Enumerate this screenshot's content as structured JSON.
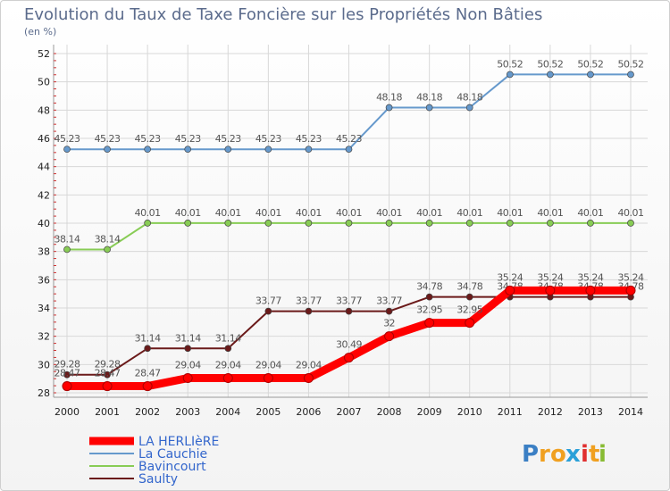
{
  "chart_data": {
    "type": "line",
    "title": "Evolution du Taux de Taxe Foncière sur les Propriétés Non Bâties",
    "subtitle": "(en %)",
    "xlabel": "",
    "ylabel": "",
    "x": [
      "2000",
      "2001",
      "2002",
      "2003",
      "2004",
      "2005",
      "2006",
      "2007",
      "2008",
      "2009",
      "2010",
      "2011",
      "2012",
      "2013",
      "2014"
    ],
    "ylim": [
      28,
      52
    ],
    "yticks": [
      28,
      30,
      32,
      34,
      36,
      38,
      40,
      42,
      44,
      46,
      48,
      50,
      52
    ],
    "grid": true,
    "legend_position": "bottom-left",
    "series": [
      {
        "name": "Saulty",
        "color": "#6b1a1a",
        "values": [
          29.28,
          29.28,
          31.14,
          31.14,
          31.14,
          33.77,
          33.77,
          33.77,
          33.77,
          34.78,
          34.78,
          34.78,
          34.78,
          34.78,
          34.78
        ],
        "labels": [
          "29.28",
          "29.28",
          "31.14",
          "31.14",
          "31.14",
          "33.77",
          "33.77",
          "33.77",
          "33.77",
          "34.78",
          "34.78",
          "34.78",
          "34.78",
          "34.78",
          "34.78"
        ]
      },
      {
        "name": "Bavincourt",
        "color": "#88cc55",
        "values": [
          38.14,
          38.14,
          40.01,
          40.01,
          40.01,
          40.01,
          40.01,
          40.01,
          40.01,
          40.01,
          40.01,
          40.01,
          40.01,
          40.01,
          40.01
        ],
        "labels": [
          "38.14",
          "38.14",
          "40.01",
          "40.01",
          "40.01",
          "40.01",
          "40.01",
          "40.01",
          "40.01",
          "40.01",
          "40.01",
          "40.01",
          "40.01",
          "40.01",
          "40.01"
        ]
      },
      {
        "name": "La Cauchie",
        "color": "#6699cc",
        "values": [
          45.23,
          45.23,
          45.23,
          45.23,
          45.23,
          45.23,
          45.23,
          45.23,
          48.18,
          48.18,
          48.18,
          50.52,
          50.52,
          50.52,
          50.52
        ],
        "labels": [
          "45.23",
          "45.23",
          "45.23",
          "45.23",
          "45.23",
          "45.23",
          "45.23",
          "45.23",
          "48.18",
          "48.18",
          "48.18",
          "50.52",
          "50.52",
          "50.52",
          "50.52"
        ]
      },
      {
        "name": "LA HERLIèRE",
        "color": "#ff0000",
        "values": [
          28.47,
          28.47,
          28.47,
          29.04,
          29.04,
          29.04,
          29.04,
          30.49,
          32,
          32.95,
          32.95,
          35.24,
          35.24,
          35.24,
          35.24
        ],
        "labels": [
          "28.47",
          "28.47",
          "28.47",
          "29.04",
          "29.04",
          "29.04",
          "29.04",
          "30.49",
          "32",
          "32.95",
          "32.95",
          "35.24",
          "35.24",
          "35.24",
          "35.24"
        ]
      }
    ],
    "legend": [
      "LA HERLIèRE",
      "La Cauchie",
      "Bavincourt",
      "Saulty"
    ]
  },
  "brand": {
    "letters": [
      "P",
      "r",
      "o",
      "x",
      "i",
      "t",
      "i"
    ],
    "colors": [
      "#3b7fc4",
      "#f0a020",
      "#f0a020",
      "#2aa0d8",
      "#e03030",
      "#f0a020",
      "#88bb33"
    ]
  }
}
